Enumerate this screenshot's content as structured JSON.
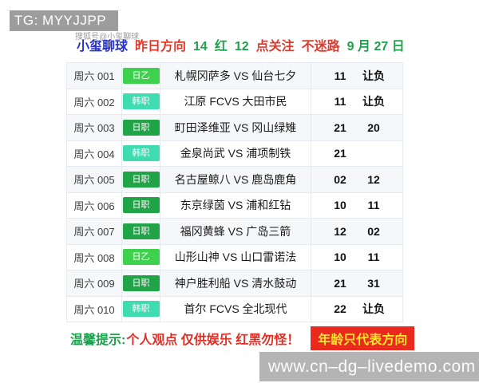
{
  "tg_bar": {
    "label": "TG: MYYJJPP"
  },
  "header": {
    "watermark": "搜狐号@小玺聊球",
    "title": "小玺聊球",
    "segments": [
      {
        "text": "昨日方向",
        "color": "red"
      },
      {
        "text": "14",
        "color": "green"
      },
      {
        "text": "红",
        "color": "green"
      },
      {
        "text": "12",
        "color": "green"
      },
      {
        "text": "点关注",
        "color": "red"
      },
      {
        "text": "不迷路",
        "color": "red"
      },
      {
        "text": "9 月 27 日",
        "color": "green"
      }
    ]
  },
  "colors": {
    "header_red": "#e03a2c",
    "header_green": "#1fa24d",
    "title_blue": "#2531c8",
    "league_colors": {
      "日乙": "#3dd14d",
      "日职": "#21a447",
      "韩职": "#40dcb1"
    },
    "tip_badge_bg": "#ea2a1e",
    "tip_badge_text": "#ffe42a"
  },
  "table": {
    "rows": [
      {
        "code": "周六 001",
        "league": "日乙",
        "match": "札幌冈萨多 VS 仙台七夕",
        "pick1": "11",
        "pick2": "让负"
      },
      {
        "code": "周六 002",
        "league": "韩职",
        "match": "江原 FCVS 大田市民",
        "pick1": "11",
        "pick2": "让负"
      },
      {
        "code": "周六 003",
        "league": "日职",
        "match": "町田泽维亚 VS 冈山绿雉",
        "pick1": "21",
        "pick2": "20"
      },
      {
        "code": "周六 004",
        "league": "韩职",
        "match": "金泉尚武 VS 浦项制铁",
        "pick1": "21",
        "pick2": ""
      },
      {
        "code": "周六 005",
        "league": "日职",
        "match": "名古屋鲸八 VS 鹿岛鹿角",
        "pick1": "02",
        "pick2": "12"
      },
      {
        "code": "周六 006",
        "league": "日职",
        "match": "东京绿茵 VS 浦和红钻",
        "pick1": "10",
        "pick2": "11"
      },
      {
        "code": "周六 007",
        "league": "日职",
        "match": "福冈黄蜂 VS 广岛三箭",
        "pick1": "12",
        "pick2": "02"
      },
      {
        "code": "周六 008",
        "league": "日乙",
        "match": "山形山神 VS 山口雷诺法",
        "pick1": "10",
        "pick2": "11"
      },
      {
        "code": "周六 009",
        "league": "日职",
        "match": "神户胜利船 VS 清水鼓动",
        "pick1": "21",
        "pick2": "31"
      },
      {
        "code": "周六 010",
        "league": "韩职",
        "match": "首尔 FCVS 全北现代",
        "pick1": "22",
        "pick2": "让负"
      }
    ]
  },
  "footer": {
    "tip_prefix": "温馨提示:",
    "tip_body": "个人观点 仅供娱乐 红黑勿怪！",
    "tip_badge": "年龄只代表方向"
  },
  "site_bar": {
    "url": "www.cn–dg–livedemo.com"
  }
}
